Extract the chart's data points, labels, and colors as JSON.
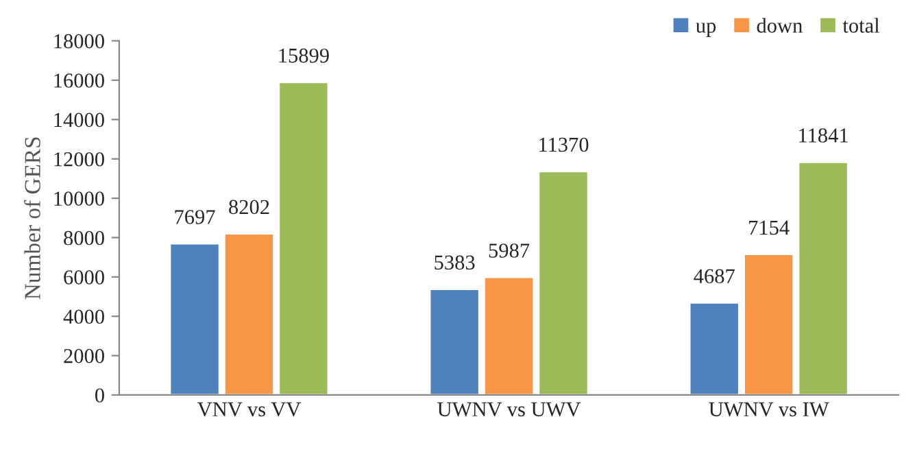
{
  "chart_data": {
    "type": "bar",
    "ylabel": "Number of GERS",
    "categories": [
      "VNV vs VV",
      "UWNV vs UWV",
      "UWNV vs IW"
    ],
    "series": [
      {
        "name": "up",
        "color": "#4f81bd",
        "values": [
          7697,
          5383,
          4687
        ]
      },
      {
        "name": "down",
        "color": "#f79646",
        "values": [
          8202,
          5987,
          7154
        ]
      },
      {
        "name": "total",
        "color": "#9bbb59",
        "values": [
          15899,
          11370,
          11841
        ]
      }
    ],
    "ylim": [
      0,
      18000
    ],
    "yticks": [
      0,
      2000,
      4000,
      6000,
      8000,
      10000,
      12000,
      14000,
      16000,
      18000
    ],
    "data_labels": true,
    "legend": "top right",
    "grid": false
  }
}
